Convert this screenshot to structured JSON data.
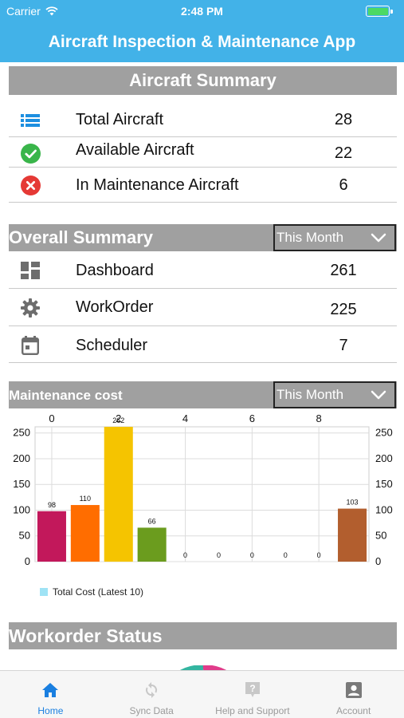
{
  "status_bar": {
    "carrier": "Carrier",
    "time": "2:48 PM"
  },
  "app_title": "Aircraft Inspection & Maintenance App",
  "aircraft_summary": {
    "title": "Aircraft Summary",
    "rows": [
      {
        "label": "Total Aircraft",
        "value": "28",
        "icon": "list-icon",
        "color": "#1d8fe0"
      },
      {
        "label": "Available Aircraft",
        "value": "22",
        "icon": "check-circle-icon",
        "color": "#39b54a"
      },
      {
        "label": "In Maintenance Aircraft",
        "value": "6",
        "icon": "cancel-circle-icon",
        "color": "#e53935"
      }
    ]
  },
  "overall_summary": {
    "title": "Overall Summary",
    "filter": "This Month",
    "rows": [
      {
        "label": "Dashboard",
        "value": "261",
        "icon": "dashboard-icon"
      },
      {
        "label": "WorkOrder",
        "value": "225",
        "icon": "gear-icon"
      },
      {
        "label": "Scheduler",
        "value": "7",
        "icon": "calendar-icon"
      }
    ]
  },
  "maintenance_cost": {
    "title": "Maintenance cost",
    "filter": "This Month",
    "legend": "Total Cost (Latest 10)"
  },
  "chart_data": {
    "type": "bar",
    "x": [
      0,
      1,
      2,
      3,
      4,
      5,
      6,
      7,
      8,
      9
    ],
    "values": [
      98,
      110,
      262,
      66,
      0,
      0,
      0,
      0,
      0,
      103
    ],
    "value_labels": [
      "98",
      "110",
      "262",
      "66",
      "0",
      "0",
      "0",
      "0",
      "0",
      "103"
    ],
    "colors": [
      "#c2185b",
      "#ff6d00",
      "#f5c400",
      "#6b9c1e",
      "#999999",
      "#999999",
      "#999999",
      "#999999",
      "#999999",
      "#b25e2e"
    ],
    "x_ticks": [
      "0",
      "2",
      "4",
      "6",
      "8"
    ],
    "y_ticks": [
      "0",
      "50",
      "100",
      "150",
      "200",
      "250"
    ],
    "ylim": [
      0,
      262
    ],
    "xlim": [
      -0.5,
      9.5
    ],
    "series": [
      {
        "name": "Total Cost (Latest 10)",
        "values": [
          98,
          110,
          262,
          66,
          0,
          0,
          0,
          0,
          0,
          103
        ]
      }
    ],
    "grid": true,
    "legend_position": "bottom-left"
  },
  "workorder_status": {
    "title": "Workorder Status"
  },
  "tabs": [
    {
      "label": "Home",
      "icon": "home-icon",
      "active": true
    },
    {
      "label": "Sync Data",
      "icon": "sync-icon",
      "active": false
    },
    {
      "label": "Help and Support",
      "icon": "help-icon",
      "active": false
    },
    {
      "label": "Account",
      "icon": "account-icon",
      "active": false
    }
  ],
  "colors": {
    "header": "#42b2e8",
    "section": "#a0a0a0",
    "active_tab": "#1a7fe0"
  }
}
